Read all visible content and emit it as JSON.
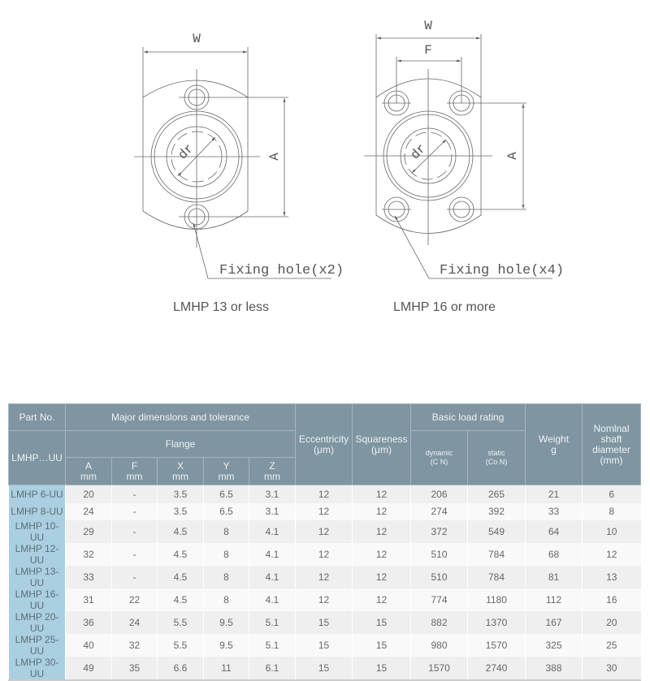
{
  "drawings": [
    {
      "caption": "LMHP 13 or less",
      "w_label": "W",
      "a_label": "A",
      "dr_label": "dr",
      "hole_label": "Fixing hole(x2)"
    },
    {
      "caption": "LMHP 16 or more",
      "w_label": "W",
      "f_label": "F",
      "a_label": "A",
      "dr_label": "dr",
      "hole_label": "Fixing hole(x4)"
    }
  ],
  "table": {
    "headers": {
      "part_no": "Part No.",
      "part_series": "LMHP…UU",
      "major": "Major dimenslons and tolerance",
      "flange": "Flange",
      "cols": [
        {
          "name": "A",
          "unit": "mm"
        },
        {
          "name": "F",
          "unit": "mm"
        },
        {
          "name": "X",
          "unit": "mm"
        },
        {
          "name": "Y",
          "unit": "mm"
        },
        {
          "name": "Z",
          "unit": "mm"
        }
      ],
      "eccentricity": "Eccentricity",
      "eccentricity_unit": "(μm)",
      "squareness": "Squareness",
      "squareness_unit": "(μm)",
      "load": "Basic load rating",
      "dynamic": "dynamic",
      "dynamic_unit": "(C N)",
      "static": "static",
      "static_unit": "(Co N)",
      "weight": "Weight",
      "weight_unit": "g",
      "shaft": "Nomlnal shaft diameter",
      "shaft_unit": "(mm)"
    },
    "rows": [
      [
        "LMHP 6-UU",
        "20",
        "-",
        "3.5",
        "6.5",
        "3.1",
        "12",
        "12",
        "206",
        "265",
        "21",
        "6"
      ],
      [
        "LMHP 8-UU",
        "24",
        "-",
        "3.5",
        "6.5",
        "3.1",
        "12",
        "12",
        "274",
        "392",
        "33",
        "8"
      ],
      [
        "LMHP 10-UU",
        "29",
        "-",
        "4.5",
        "8",
        "4.1",
        "12",
        "12",
        "372",
        "549",
        "64",
        "10"
      ],
      [
        "LMHP 12-UU",
        "32",
        "-",
        "4.5",
        "8",
        "4.1",
        "12",
        "12",
        "510",
        "784",
        "68",
        "12"
      ],
      [
        "LMHP 13-UU",
        "33",
        "-",
        "4.5",
        "8",
        "4.1",
        "12",
        "12",
        "510",
        "784",
        "81",
        "13"
      ],
      [
        "LMHP 16-UU",
        "31",
        "22",
        "4.5",
        "8",
        "4.1",
        "12",
        "12",
        "774",
        "1180",
        "112",
        "16"
      ],
      [
        "LMHP 20-UU",
        "36",
        "24",
        "5.5",
        "9.5",
        "5.1",
        "15",
        "15",
        "882",
        "1370",
        "167",
        "20"
      ],
      [
        "LMHP 25-UU",
        "40",
        "32",
        "5.5",
        "9.5",
        "5.1",
        "15",
        "15",
        "980",
        "1570",
        "325",
        "25"
      ],
      [
        "LMHP 30-UU",
        "49",
        "35",
        "6.6",
        "11",
        "6.1",
        "15",
        "15",
        "1570",
        "2740",
        "388",
        "30"
      ]
    ]
  }
}
